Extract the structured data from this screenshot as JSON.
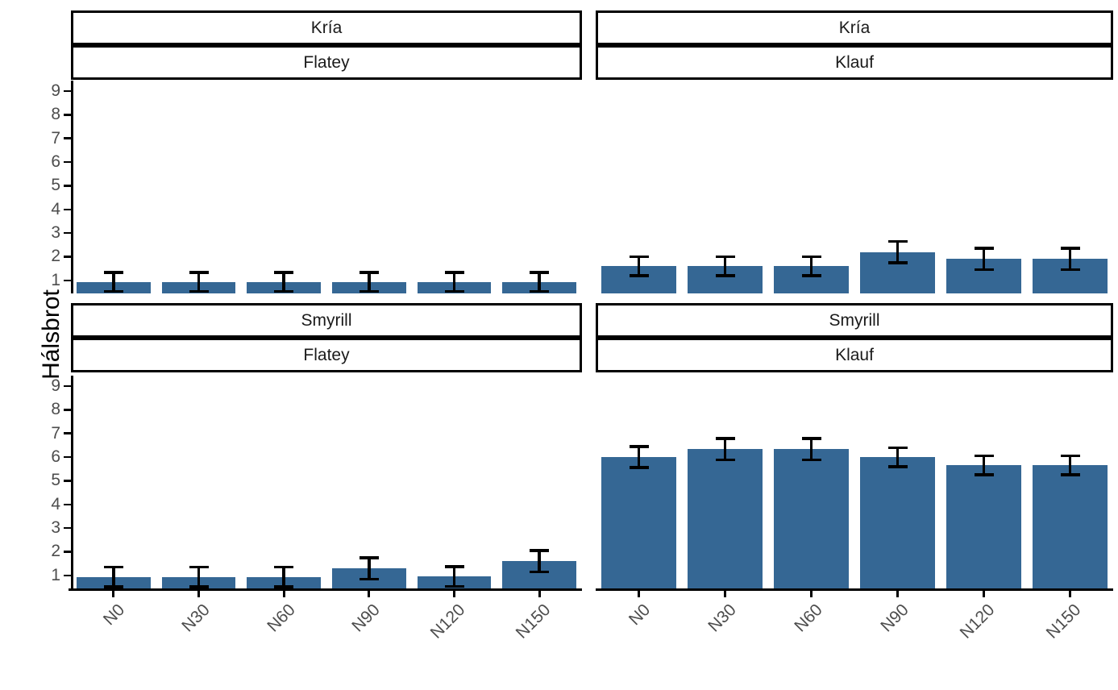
{
  "colors": {
    "bar": "#356794",
    "error_bar": "#000000",
    "axis_line": "#000000",
    "tick_text": "#4d4d4d",
    "strip_bg": "#ffffff",
    "strip_border": "#000000",
    "background": "#ffffff"
  },
  "chart_data": {
    "type": "bar",
    "title": "",
    "ylabel": "Hálsbrot",
    "xlabel": "",
    "categories": [
      "N0",
      "N30",
      "N60",
      "N90",
      "N120",
      "N150"
    ],
    "y_ticks": [
      1,
      2,
      3,
      4,
      5,
      6,
      7,
      8,
      9
    ],
    "ylim": [
      0.45,
      9.44
    ],
    "grid": false,
    "legend": "none",
    "error_bars": true,
    "facet_rows": [
      "Kría",
      "Smyrill"
    ],
    "facet_cols": [
      "Flatey",
      "Klauf"
    ],
    "facets": [
      {
        "row": "Kría",
        "col": "Flatey",
        "values": [
          0.93,
          0.93,
          0.93,
          0.93,
          0.93,
          0.93
        ],
        "errors": [
          0.4,
          0.4,
          0.4,
          0.4,
          0.4,
          0.4
        ]
      },
      {
        "row": "Kría",
        "col": "Klauf",
        "values": [
          1.6,
          1.6,
          1.6,
          2.2,
          1.9,
          1.9
        ],
        "errors": [
          0.4,
          0.4,
          0.4,
          0.45,
          0.45,
          0.45
        ]
      },
      {
        "row": "Smyrill",
        "col": "Flatey",
        "values": [
          0.93,
          0.93,
          0.93,
          1.3,
          0.95,
          1.6
        ],
        "errors": [
          0.42,
          0.42,
          0.42,
          0.45,
          0.42,
          0.45
        ]
      },
      {
        "row": "Smyrill",
        "col": "Klauf",
        "values": [
          6.0,
          6.33,
          6.33,
          6.0,
          5.65,
          5.65
        ],
        "errors": [
          0.45,
          0.45,
          0.45,
          0.4,
          0.4,
          0.4
        ]
      }
    ]
  }
}
